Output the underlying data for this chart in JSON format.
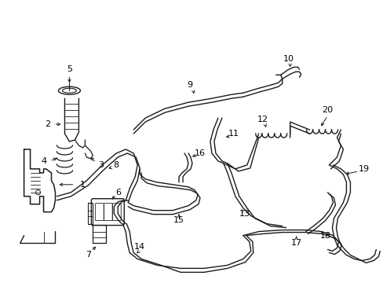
{
  "bg_color": "#ffffff",
  "line_color": "#1a1a1a",
  "lw": 1.2,
  "lw_thin": 0.7,
  "fig_width": 4.89,
  "fig_height": 3.6,
  "dpi": 100
}
